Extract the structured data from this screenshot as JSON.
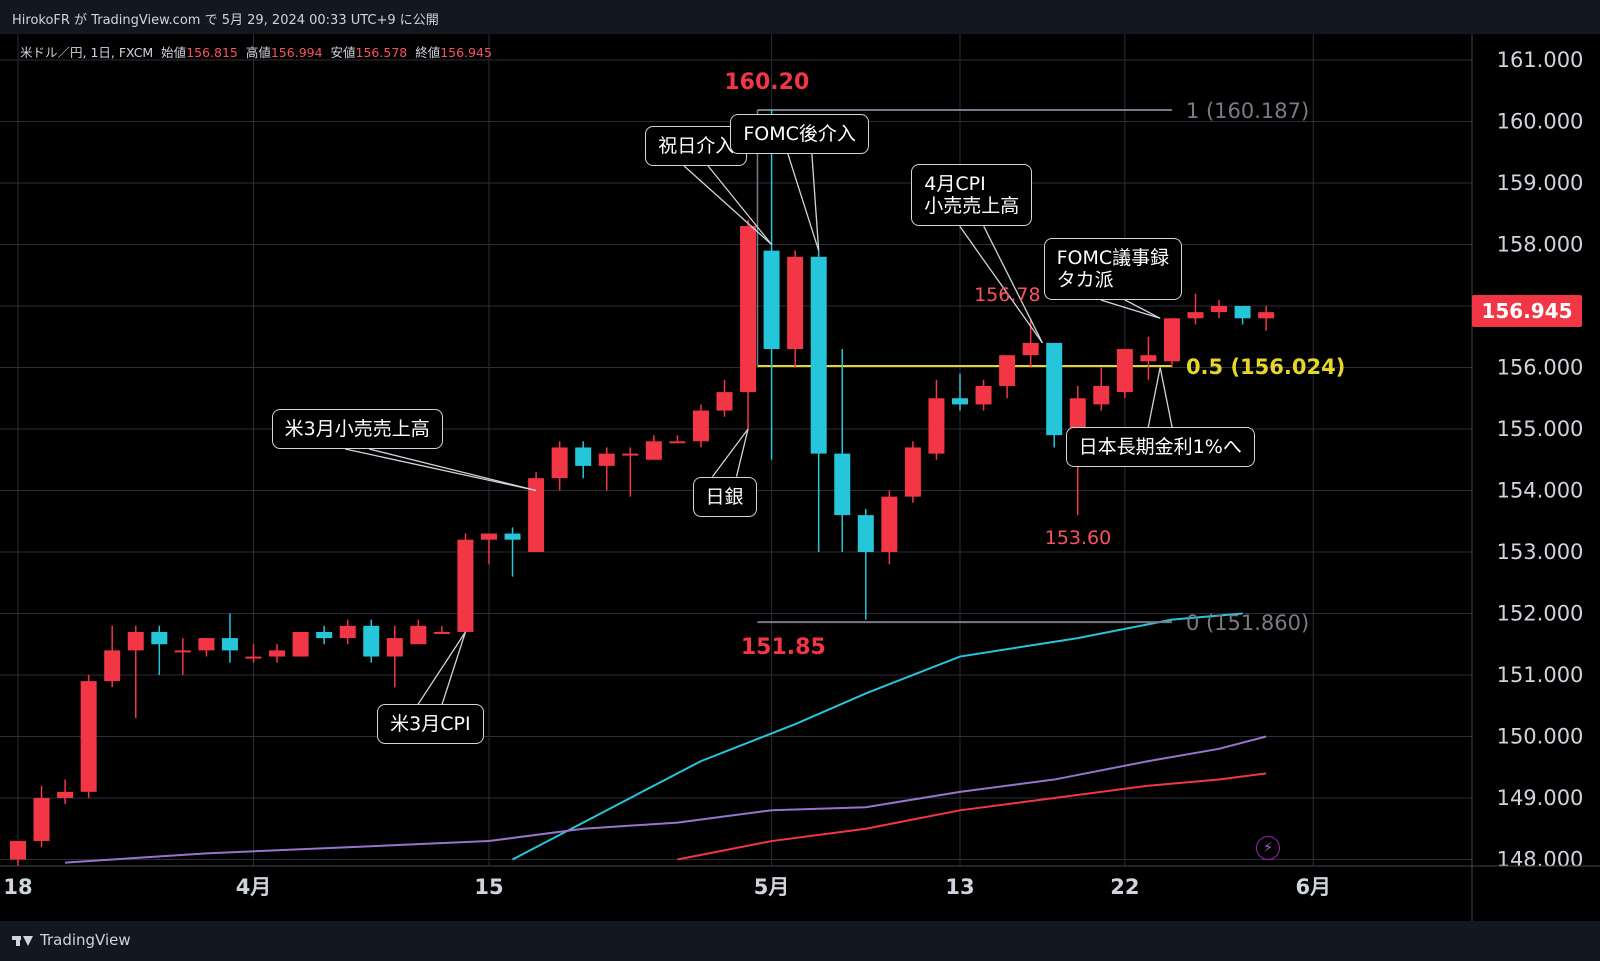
{
  "header": {
    "publish_line": "HirokoFR が TradingView.com で 5月 29, 2024 00:33 UTC+9 に公開"
  },
  "legend": {
    "symbol": "米ドル／円, 1日, FXCM",
    "open_label": "始値",
    "open": "156.815",
    "high_label": "高値",
    "high": "156.994",
    "low_label": "安値",
    "low": "156.578",
    "close_label": "終値",
    "close": "156.945"
  },
  "footer": {
    "brand": "TradingView"
  },
  "last_price_tag": "156.945",
  "colors": {
    "up": "#f23645",
    "down": "#26c6da",
    "grid": "#2a2e39",
    "fib_mid": "#e6d62a",
    "ma_fast": "#26c6da",
    "ma_mid": "#9575cd",
    "ma_slow": "#f23645"
  },
  "chart_data": {
    "type": "candlestick",
    "symbol": "USD/JPY",
    "ylim": [
      148.0,
      161.6
    ],
    "y_ticks": [
      "161.000",
      "160.000",
      "159.000",
      "158.000",
      "157.000",
      "156.000",
      "155.000",
      "154.000",
      "153.000",
      "152.000",
      "151.000",
      "150.000",
      "149.000",
      "148.000"
    ],
    "x_ticks": [
      {
        "label": "18",
        "index": 0
      },
      {
        "label": "4月",
        "index": 10
      },
      {
        "label": "15",
        "index": 20
      },
      {
        "label": "5月",
        "index": 32
      },
      {
        "label": "13",
        "index": 40
      },
      {
        "label": "22",
        "index": 47
      },
      {
        "label": "6月",
        "index": 55
      }
    ],
    "candles": [
      {
        "o": 148.0,
        "h": 148.3,
        "l": 147.9,
        "c": 148.3
      },
      {
        "o": 148.3,
        "h": 149.2,
        "l": 148.2,
        "c": 149.0
      },
      {
        "o": 149.0,
        "h": 149.3,
        "l": 148.9,
        "c": 149.1
      },
      {
        "o": 149.1,
        "h": 151.0,
        "l": 149.0,
        "c": 150.9
      },
      {
        "o": 150.9,
        "h": 151.8,
        "l": 150.8,
        "c": 151.4
      },
      {
        "o": 151.4,
        "h": 151.8,
        "l": 150.3,
        "c": 151.7
      },
      {
        "o": 151.7,
        "h": 151.8,
        "l": 151.0,
        "c": 151.5
      },
      {
        "o": 151.4,
        "h": 151.6,
        "l": 151.0,
        "c": 151.4
      },
      {
        "o": 151.4,
        "h": 151.6,
        "l": 151.3,
        "c": 151.6
      },
      {
        "o": 151.6,
        "h": 152.0,
        "l": 151.2,
        "c": 151.4
      },
      {
        "o": 151.3,
        "h": 151.5,
        "l": 151.2,
        "c": 151.3
      },
      {
        "o": 151.3,
        "h": 151.5,
        "l": 151.2,
        "c": 151.4
      },
      {
        "o": 151.3,
        "h": 151.7,
        "l": 151.3,
        "c": 151.7
      },
      {
        "o": 151.7,
        "h": 151.8,
        "l": 151.5,
        "c": 151.6
      },
      {
        "o": 151.6,
        "h": 151.9,
        "l": 151.5,
        "c": 151.8
      },
      {
        "o": 151.8,
        "h": 151.9,
        "l": 151.2,
        "c": 151.3
      },
      {
        "o": 151.3,
        "h": 151.8,
        "l": 150.8,
        "c": 151.6
      },
      {
        "o": 151.5,
        "h": 151.9,
        "l": 151.5,
        "c": 151.8
      },
      {
        "o": 151.7,
        "h": 151.8,
        "l": 151.7,
        "c": 151.7
      },
      {
        "o": 151.7,
        "h": 153.3,
        "l": 151.7,
        "c": 153.2
      },
      {
        "o": 153.2,
        "h": 153.3,
        "l": 152.8,
        "c": 153.3
      },
      {
        "o": 153.3,
        "h": 153.4,
        "l": 152.6,
        "c": 153.2
      },
      {
        "o": 153.0,
        "h": 154.3,
        "l": 153.0,
        "c": 154.2
      },
      {
        "o": 154.2,
        "h": 154.8,
        "l": 154.0,
        "c": 154.7
      },
      {
        "o": 154.7,
        "h": 154.8,
        "l": 154.2,
        "c": 154.4
      },
      {
        "o": 154.4,
        "h": 154.7,
        "l": 154.0,
        "c": 154.6
      },
      {
        "o": 154.6,
        "h": 154.7,
        "l": 153.9,
        "c": 154.6
      },
      {
        "o": 154.5,
        "h": 154.9,
        "l": 154.5,
        "c": 154.8
      },
      {
        "o": 154.8,
        "h": 154.9,
        "l": 154.8,
        "c": 154.8
      },
      {
        "o": 154.8,
        "h": 155.4,
        "l": 154.7,
        "c": 155.3
      },
      {
        "o": 155.3,
        "h": 155.8,
        "l": 155.2,
        "c": 155.6
      },
      {
        "o": 155.6,
        "h": 158.4,
        "l": 155.0,
        "c": 158.3
      },
      {
        "o": 157.9,
        "h": 160.2,
        "l": 154.5,
        "c": 156.3
      },
      {
        "o": 156.3,
        "h": 157.9,
        "l": 156.0,
        "c": 157.8
      },
      {
        "o": 157.8,
        "h": 157.9,
        "l": 153.0,
        "c": 154.6
      },
      {
        "o": 154.6,
        "h": 156.3,
        "l": 153.0,
        "c": 153.6
      },
      {
        "o": 153.6,
        "h": 153.7,
        "l": 151.9,
        "c": 153.0
      },
      {
        "o": 153.0,
        "h": 154.0,
        "l": 152.8,
        "c": 153.9
      },
      {
        "o": 153.9,
        "h": 154.8,
        "l": 153.8,
        "c": 154.7
      },
      {
        "o": 154.6,
        "h": 155.8,
        "l": 154.5,
        "c": 155.5
      },
      {
        "o": 155.5,
        "h": 155.9,
        "l": 155.3,
        "c": 155.4
      },
      {
        "o": 155.4,
        "h": 155.8,
        "l": 155.3,
        "c": 155.7
      },
      {
        "o": 155.7,
        "h": 156.2,
        "l": 155.5,
        "c": 156.2
      },
      {
        "o": 156.2,
        "h": 156.8,
        "l": 156.0,
        "c": 156.4
      },
      {
        "o": 156.4,
        "h": 156.4,
        "l": 154.7,
        "c": 154.9
      },
      {
        "o": 154.9,
        "h": 155.7,
        "l": 153.6,
        "c": 155.5
      },
      {
        "o": 155.4,
        "h": 156.0,
        "l": 155.3,
        "c": 155.7
      },
      {
        "o": 155.6,
        "h": 156.3,
        "l": 155.5,
        "c": 156.3
      },
      {
        "o": 156.1,
        "h": 156.5,
        "l": 155.8,
        "c": 156.2
      },
      {
        "o": 156.1,
        "h": 156.8,
        "l": 156.0,
        "c": 156.8
      },
      {
        "o": 156.8,
        "h": 157.2,
        "l": 156.7,
        "c": 156.9
      },
      {
        "o": 156.9,
        "h": 157.1,
        "l": 156.8,
        "c": 157.0
      },
      {
        "o": 157.0,
        "h": 157.0,
        "l": 156.7,
        "c": 156.8
      },
      {
        "o": 156.8,
        "h": 157.0,
        "l": 156.6,
        "c": 156.9
      }
    ],
    "moving_averages": [
      {
        "color": "#26c6da",
        "points": [
          [
            21,
            148.0
          ],
          [
            23,
            148.4
          ],
          [
            26,
            149.0
          ],
          [
            29,
            149.6
          ],
          [
            33,
            150.2
          ],
          [
            36,
            150.7
          ],
          [
            40,
            151.3
          ],
          [
            45,
            151.6
          ],
          [
            49,
            151.9
          ],
          [
            52,
            152.0
          ]
        ]
      },
      {
        "color": "#9575cd",
        "points": [
          [
            2,
            147.95
          ],
          [
            8,
            148.1
          ],
          [
            14,
            148.2
          ],
          [
            20,
            148.3
          ],
          [
            24,
            148.5
          ],
          [
            28,
            148.6
          ],
          [
            32,
            148.8
          ],
          [
            36,
            148.85
          ],
          [
            40,
            149.1
          ],
          [
            44,
            149.3
          ],
          [
            48,
            149.6
          ],
          [
            51,
            149.8
          ],
          [
            53,
            150.0
          ]
        ]
      },
      {
        "color": "#f23645",
        "points": [
          [
            28,
            148.0
          ],
          [
            32,
            148.3
          ],
          [
            36,
            148.5
          ],
          [
            40,
            148.8
          ],
          [
            44,
            149.0
          ],
          [
            48,
            149.2
          ],
          [
            51,
            149.3
          ],
          [
            53,
            149.4
          ]
        ]
      }
    ],
    "fibonacci": [
      {
        "label": "1 (160.187)",
        "value": 160.187,
        "color": "#787b86"
      },
      {
        "label": "0.5 (156.024)",
        "value": 156.024,
        "color": "#e6d62a"
      },
      {
        "label": "0 (151.860)",
        "value": 151.86,
        "color": "#787b86"
      }
    ],
    "price_labels": [
      {
        "text": "160.20",
        "index": 31.8,
        "value": 160.2,
        "style": "big"
      },
      {
        "text": "151.85",
        "index": 32.5,
        "value": 151.85,
        "style": "big"
      },
      {
        "text": "156.78",
        "index": 42,
        "value": 156.78,
        "style": "small"
      },
      {
        "text": "153.60",
        "index": 45,
        "value": 153.6,
        "style": "small"
      }
    ],
    "annotations": [
      {
        "text": "祝日介入",
        "box_index": 28.8,
        "box_value": 159.6,
        "target_index": 32,
        "target_value": 158.0
      },
      {
        "text": "FOMC後介入",
        "box_index": 33.2,
        "box_value": 159.8,
        "target_index": 34,
        "target_value": 157.9
      },
      {
        "text": "4月CPI\n小売売上高",
        "box_index": 40.5,
        "box_value": 158.8,
        "target_index": 43.5,
        "target_value": 156.4
      },
      {
        "text": "FOMC議事録\nタカ派",
        "box_index": 46.5,
        "box_value": 157.6,
        "target_index": 48.5,
        "target_value": 156.8
      },
      {
        "text": "米3月小売売上高",
        "box_index": 14.4,
        "box_value": 155.0,
        "target_index": 22,
        "target_value": 154.0
      },
      {
        "text": "日銀",
        "box_index": 30,
        "box_value": 153.9,
        "target_index": 31,
        "target_value": 155.0
      },
      {
        "text": "米3月CPI",
        "box_index": 17.5,
        "box_value": 150.2,
        "target_index": 19,
        "target_value": 151.7
      },
      {
        "text": "日本長期金利1%へ",
        "box_index": 48.5,
        "box_value": 154.7,
        "target_index": 48.5,
        "target_value": 156.0
      }
    ]
  }
}
